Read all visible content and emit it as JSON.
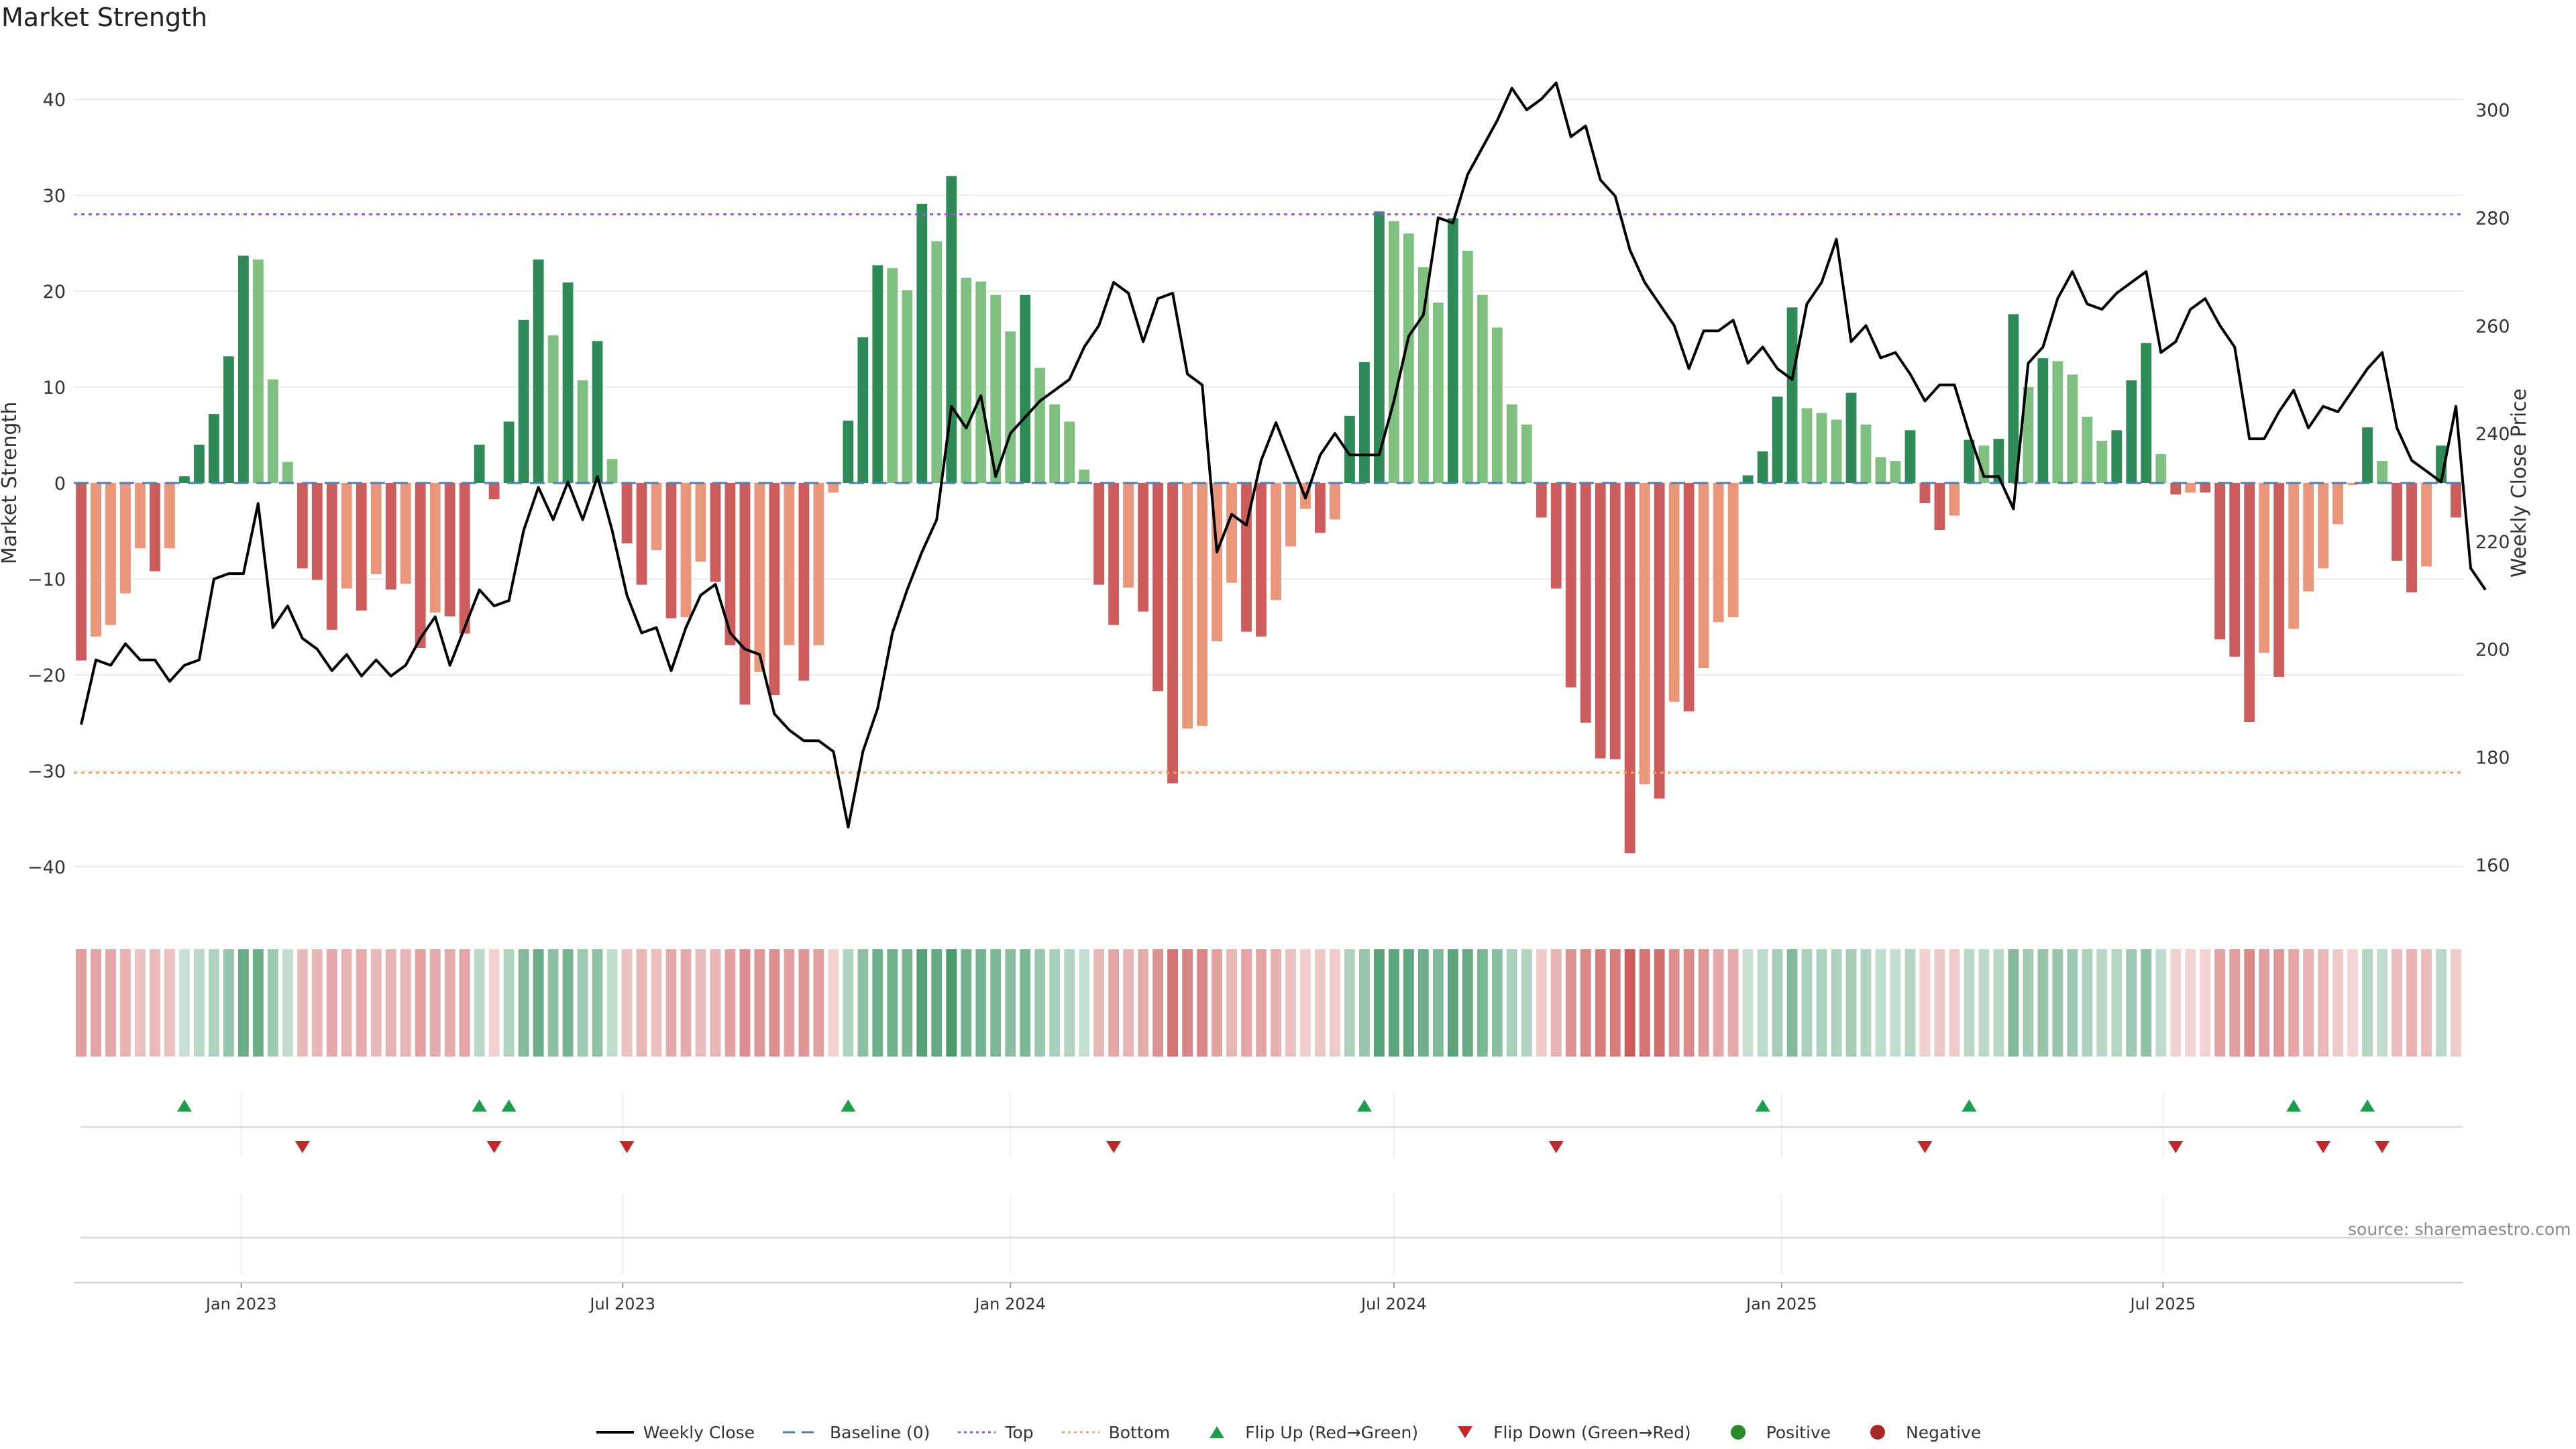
{
  "title": "Market Strength",
  "source": "source: sharemaestro.com",
  "chart_data": {
    "type": "bar",
    "x_start": "2022-10-17",
    "x_step_days": 7,
    "ylabel": "Market Strength",
    "y2label": "Weekly Close Price",
    "ylim": [
      -43,
      43
    ],
    "y2lim": [
      154.3,
      307.3
    ],
    "yticks": [
      40,
      30,
      20,
      10,
      0,
      -10,
      -20,
      -30,
      -40
    ],
    "y2ticks": [
      300,
      280,
      260,
      240,
      220,
      200,
      180,
      160
    ],
    "x_tick_labels": [
      "Jan 2023",
      "Jul 2023",
      "Jan 2024",
      "Jul 2024",
      "Jan 2025",
      "Jul 2025"
    ],
    "x_tick_dates": [
      "2023-01-01",
      "2023-07-01",
      "2024-01-01",
      "2024-07-01",
      "2025-01-01",
      "2025-07-01"
    ],
    "top_line": 28,
    "bottom_line": -30.2,
    "baseline": 0,
    "strength": [
      -18.5,
      -16,
      -14.8,
      -11.5,
      -6.8,
      -9.2,
      -6.8,
      0.7,
      4,
      7.2,
      13.2,
      23.7,
      23.3,
      10.8,
      2.2,
      -8.9,
      -10.1,
      -15.3,
      -11,
      -13.3,
      -9.5,
      -11.1,
      -10.5,
      -17.2,
      -13.5,
      -13.9,
      -15.7,
      4,
      -1.7,
      6.4,
      17,
      23.3,
      15.4,
      20.9,
      10.7,
      14.8,
      2.5,
      -6.3,
      -10.6,
      -7,
      -14.1,
      -14,
      -8.2,
      -10.3,
      -16.9,
      -23.1,
      -19.7,
      -22.1,
      -16.9,
      -20.6,
      -16.9,
      -1,
      6.5,
      15.2,
      22.7,
      22.4,
      20.1,
      29.1,
      25.2,
      32,
      21.4,
      21,
      19.6,
      15.8,
      19.6,
      12,
      8.2,
      6.4,
      1.4,
      -10.6,
      -14.8,
      -10.9,
      -13.4,
      -21.7,
      -31.3,
      -25.6,
      -25.3,
      -16.5,
      -10.4,
      -15.5,
      -16,
      -12.2,
      -6.6,
      -2.7,
      -5.2,
      -3.8,
      7,
      12.6,
      28.3,
      27.3,
      26,
      22.5,
      18.8,
      27.6,
      24.2,
      19.6,
      16.2,
      8.2,
      6.1,
      -3.6,
      -11,
      -21.3,
      -25,
      -28.7,
      -28.8,
      -38.6,
      -31.4,
      -32.9,
      -22.8,
      -23.8,
      -19.3,
      -14.5,
      -14,
      0.8,
      3.3,
      9,
      18.3,
      7.8,
      7.3,
      6.6,
      9.4,
      6.1,
      2.7,
      2.3,
      5.5,
      -2.1,
      -4.9,
      -3.4,
      4.5,
      3.9,
      4.6,
      17.6,
      10,
      13,
      12.7,
      11.3,
      6.9,
      4.4,
      5.5,
      10.7,
      14.6,
      3,
      -1.2,
      -1,
      -1,
      -16.3,
      -18.1,
      -24.9,
      -17.7,
      -20.2,
      -15.2,
      -11.3,
      -8.9,
      -4.3,
      -0.2,
      5.8,
      2.3,
      -8.1,
      -11.4,
      -8.7,
      3.9,
      -3.6
    ],
    "close": [
      186,
      198,
      197,
      201,
      198,
      198,
      194,
      197,
      198,
      213,
      214,
      214,
      227,
      204,
      208,
      202,
      200,
      196,
      199,
      195,
      198,
      195,
      197,
      202,
      206,
      197,
      204,
      211,
      208,
      209,
      222,
      230,
      224,
      231,
      224,
      232,
      222,
      210,
      203,
      204,
      196,
      204,
      210,
      212,
      203,
      200,
      199,
      188,
      185,
      183,
      183,
      181,
      167,
      181,
      189,
      203,
      211,
      218,
      224,
      245,
      241,
      247,
      232,
      240,
      243,
      246,
      248,
      250,
      256,
      260,
      268,
      266,
      257,
      265,
      266,
      251,
      249,
      218,
      225,
      223,
      235,
      242,
      235,
      228,
      236,
      240,
      236,
      236,
      236,
      246,
      258,
      262,
      280,
      279,
      288,
      293,
      298,
      304,
      300,
      302,
      305,
      295,
      297,
      287,
      284,
      274,
      268,
      264,
      260,
      252,
      259,
      259,
      261,
      253,
      256,
      252,
      250,
      264,
      268,
      276,
      257,
      260,
      254,
      255,
      251,
      246,
      249,
      249,
      240,
      232,
      232,
      226,
      253,
      256,
      265,
      270,
      264,
      263,
      266,
      268,
      270,
      255,
      257,
      263,
      265,
      260,
      256,
      239,
      239,
      244,
      248,
      241,
      245,
      244,
      248,
      252,
      255,
      241,
      235,
      233,
      231,
      245,
      215,
      211
    ],
    "flip_up_index": [
      7,
      27,
      29,
      52,
      87,
      114,
      128,
      150,
      155
    ],
    "flip_down_index": [
      15,
      28,
      37,
      70,
      100,
      125,
      142,
      152,
      156
    ],
    "colors": {
      "strong_green": "#2e8b57",
      "light_green": "#7fbf7f",
      "strong_red": "#cd5c5c",
      "light_red": "#e9967a",
      "price": "#000000",
      "baseline": "#4f7fb3",
      "top": "#9b59d0",
      "bottom": "#f4a460",
      "flip_up": "#1e9e4a",
      "flip_down": "#c0282c",
      "positive": "#2a8a2a",
      "negative": "#a82828"
    }
  },
  "legend": [
    {
      "label": "Weekly Close",
      "symbol": "line",
      "color": "#000000"
    },
    {
      "label": "Baseline (0)",
      "symbol": "dash",
      "color": "#4f7fb3"
    },
    {
      "label": "Top",
      "symbol": "dot",
      "color": "#9b59d0"
    },
    {
      "label": "Bottom",
      "symbol": "dot",
      "color": "#f4a460"
    },
    {
      "label": "Flip Up (Red→Green)",
      "symbol": "tri-up",
      "color": "#1e9e4a"
    },
    {
      "label": "Flip Down (Green→Red)",
      "symbol": "tri-down",
      "color": "#c0282c"
    },
    {
      "label": "Positive",
      "symbol": "circle",
      "color": "#2a8a2a"
    },
    {
      "label": "Negative",
      "symbol": "circle",
      "color": "#a82828"
    }
  ]
}
